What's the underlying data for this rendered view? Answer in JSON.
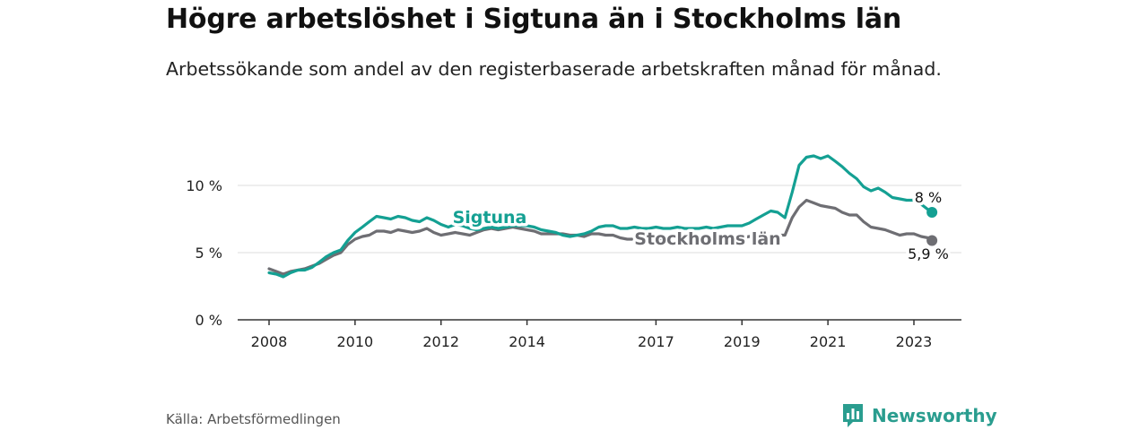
{
  "title": "Högre arbetslöshet i Sigtuna än i Stockholms län",
  "subtitle": "Arbetssökande som andel av den registerbaserade arbetskraften månad för månad.",
  "source": "Källa: Arbetsförmedlingen",
  "brand": "Newsworthy",
  "colors": {
    "sigtuna": "#14a093",
    "stockholm": "#6e6e73",
    "grid": "#dedede",
    "axis": "#333333"
  },
  "chart_data": {
    "type": "line",
    "title": "Högre arbetslöshet i Sigtuna än i Stockholms län",
    "xlabel": "",
    "ylabel": "",
    "xlim": [
      2008,
      2023.5
    ],
    "ylim": [
      0,
      13
    ],
    "x_ticks": [
      2008,
      2010,
      2012,
      2014,
      2017,
      2019,
      2021,
      2023
    ],
    "x_tick_labels": [
      "2008",
      "2010",
      "2012",
      "2014",
      "2017",
      "2019",
      "2021",
      "2023"
    ],
    "y_ticks": [
      0,
      5,
      10
    ],
    "y_tick_labels": [
      "0 %",
      "5 %",
      "10 %"
    ],
    "grid": true,
    "series": [
      {
        "name": "Sigtuna",
        "label": "Sigtuna",
        "end_label": "8 %",
        "points": [
          [
            2008,
            3.5
          ],
          [
            2008.17,
            3.4
          ],
          [
            2008.33,
            3.2
          ],
          [
            2008.5,
            3.5
          ],
          [
            2008.67,
            3.7
          ],
          [
            2008.83,
            3.7
          ],
          [
            2009,
            3.9
          ],
          [
            2009.17,
            4.3
          ],
          [
            2009.33,
            4.7
          ],
          [
            2009.5,
            5.0
          ],
          [
            2009.67,
            5.2
          ],
          [
            2009.83,
            5.9
          ],
          [
            2010,
            6.5
          ],
          [
            2010.17,
            6.9
          ],
          [
            2010.33,
            7.3
          ],
          [
            2010.5,
            7.7
          ],
          [
            2010.67,
            7.6
          ],
          [
            2010.83,
            7.5
          ],
          [
            2011,
            7.7
          ],
          [
            2011.17,
            7.6
          ],
          [
            2011.33,
            7.4
          ],
          [
            2011.5,
            7.3
          ],
          [
            2011.67,
            7.6
          ],
          [
            2011.83,
            7.4
          ],
          [
            2012,
            7.1
          ],
          [
            2012.17,
            6.9
          ],
          [
            2012.33,
            7.1
          ],
          [
            2012.5,
            7.0
          ],
          [
            2012.67,
            6.8
          ],
          [
            2012.83,
            6.7
          ],
          [
            2013,
            6.8
          ],
          [
            2013.17,
            6.9
          ],
          [
            2013.33,
            6.8
          ],
          [
            2013.5,
            6.9
          ],
          [
            2013.67,
            7.0
          ],
          [
            2013.83,
            7.0
          ],
          [
            2014,
            7.0
          ],
          [
            2014.17,
            6.9
          ],
          [
            2014.33,
            6.7
          ],
          [
            2014.5,
            6.6
          ],
          [
            2014.67,
            6.5
          ],
          [
            2014.83,
            6.3
          ],
          [
            2015,
            6.2
          ],
          [
            2015.17,
            6.3
          ],
          [
            2015.33,
            6.4
          ],
          [
            2015.5,
            6.6
          ],
          [
            2015.67,
            6.9
          ],
          [
            2015.83,
            7.0
          ],
          [
            2016,
            7.0
          ],
          [
            2016.17,
            6.8
          ],
          [
            2016.33,
            6.8
          ],
          [
            2016.5,
            6.9
          ],
          [
            2016.67,
            6.8
          ],
          [
            2016.83,
            6.8
          ],
          [
            2017,
            6.9
          ],
          [
            2017.17,
            6.8
          ],
          [
            2017.33,
            6.8
          ],
          [
            2017.5,
            6.9
          ],
          [
            2017.67,
            6.8
          ],
          [
            2017.83,
            6.8
          ],
          [
            2018,
            6.8
          ],
          [
            2018.17,
            6.9
          ],
          [
            2018.33,
            6.8
          ],
          [
            2018.5,
            6.9
          ],
          [
            2018.67,
            7.0
          ],
          [
            2018.83,
            7.0
          ],
          [
            2019,
            7.0
          ],
          [
            2019.17,
            7.2
          ],
          [
            2019.33,
            7.5
          ],
          [
            2019.5,
            7.8
          ],
          [
            2019.67,
            8.1
          ],
          [
            2019.83,
            8.0
          ],
          [
            2020,
            7.6
          ],
          [
            2020.17,
            9.5
          ],
          [
            2020.33,
            11.5
          ],
          [
            2020.5,
            12.1
          ],
          [
            2020.67,
            12.2
          ],
          [
            2020.83,
            12.0
          ],
          [
            2021,
            12.2
          ],
          [
            2021.17,
            11.8
          ],
          [
            2021.33,
            11.4
          ],
          [
            2021.5,
            10.9
          ],
          [
            2021.67,
            10.5
          ],
          [
            2021.83,
            9.9
          ],
          [
            2022,
            9.6
          ],
          [
            2022.17,
            9.8
          ],
          [
            2022.33,
            9.5
          ],
          [
            2022.5,
            9.1
          ],
          [
            2022.67,
            9.0
          ],
          [
            2022.83,
            8.9
          ],
          [
            2023,
            8.9
          ],
          [
            2023.17,
            8.6
          ],
          [
            2023.33,
            8.2
          ],
          [
            2023.42,
            8.0
          ]
        ]
      },
      {
        "name": "Stockholms län",
        "label": "Stockholms län",
        "end_label": "5,9 %",
        "points": [
          [
            2008,
            3.8
          ],
          [
            2008.17,
            3.6
          ],
          [
            2008.33,
            3.4
          ],
          [
            2008.5,
            3.6
          ],
          [
            2008.67,
            3.7
          ],
          [
            2008.83,
            3.8
          ],
          [
            2009,
            4.0
          ],
          [
            2009.17,
            4.2
          ],
          [
            2009.33,
            4.5
          ],
          [
            2009.5,
            4.8
          ],
          [
            2009.67,
            5.0
          ],
          [
            2009.83,
            5.6
          ],
          [
            2010,
            6.0
          ],
          [
            2010.17,
            6.2
          ],
          [
            2010.33,
            6.3
          ],
          [
            2010.5,
            6.6
          ],
          [
            2010.67,
            6.6
          ],
          [
            2010.83,
            6.5
          ],
          [
            2011,
            6.7
          ],
          [
            2011.17,
            6.6
          ],
          [
            2011.33,
            6.5
          ],
          [
            2011.5,
            6.6
          ],
          [
            2011.67,
            6.8
          ],
          [
            2011.83,
            6.5
          ],
          [
            2012,
            6.3
          ],
          [
            2012.17,
            6.4
          ],
          [
            2012.33,
            6.5
          ],
          [
            2012.5,
            6.4
          ],
          [
            2012.67,
            6.3
          ],
          [
            2012.83,
            6.5
          ],
          [
            2013,
            6.7
          ],
          [
            2013.17,
            6.8
          ],
          [
            2013.33,
            6.7
          ],
          [
            2013.5,
            6.8
          ],
          [
            2013.67,
            6.9
          ],
          [
            2013.83,
            6.8
          ],
          [
            2014,
            6.7
          ],
          [
            2014.17,
            6.6
          ],
          [
            2014.33,
            6.4
          ],
          [
            2014.5,
            6.4
          ],
          [
            2014.67,
            6.4
          ],
          [
            2014.83,
            6.4
          ],
          [
            2015,
            6.3
          ],
          [
            2015.17,
            6.3
          ],
          [
            2015.33,
            6.2
          ],
          [
            2015.5,
            6.4
          ],
          [
            2015.67,
            6.4
          ],
          [
            2015.83,
            6.3
          ],
          [
            2016,
            6.3
          ],
          [
            2016.17,
            6.1
          ],
          [
            2016.33,
            6.0
          ],
          [
            2016.5,
            6.0
          ],
          [
            2016.67,
            6.0
          ],
          [
            2016.83,
            6.0
          ],
          [
            2017,
            6.0
          ],
          [
            2017.17,
            6.0
          ],
          [
            2017.33,
            6.0
          ],
          [
            2017.5,
            6.1
          ],
          [
            2017.67,
            6.0
          ],
          [
            2017.83,
            6.0
          ],
          [
            2018,
            6.0
          ],
          [
            2018.17,
            6.1
          ],
          [
            2018.33,
            6.0
          ],
          [
            2018.5,
            6.0
          ],
          [
            2018.67,
            6.1
          ],
          [
            2018.83,
            6.1
          ],
          [
            2019,
            6.1
          ],
          [
            2019.17,
            6.2
          ],
          [
            2019.33,
            6.3
          ],
          [
            2019.5,
            6.4
          ],
          [
            2019.67,
            6.4
          ],
          [
            2019.83,
            6.3
          ],
          [
            2020,
            6.3
          ],
          [
            2020.17,
            7.6
          ],
          [
            2020.33,
            8.4
          ],
          [
            2020.5,
            8.9
          ],
          [
            2020.67,
            8.7
          ],
          [
            2020.83,
            8.5
          ],
          [
            2021,
            8.4
          ],
          [
            2021.17,
            8.3
          ],
          [
            2021.33,
            8.0
          ],
          [
            2021.5,
            7.8
          ],
          [
            2021.67,
            7.8
          ],
          [
            2021.83,
            7.3
          ],
          [
            2022,
            6.9
          ],
          [
            2022.17,
            6.8
          ],
          [
            2022.33,
            6.7
          ],
          [
            2022.5,
            6.5
          ],
          [
            2022.67,
            6.3
          ],
          [
            2022.83,
            6.4
          ],
          [
            2023,
            6.4
          ],
          [
            2023.17,
            6.2
          ],
          [
            2023.33,
            6.1
          ],
          [
            2023.42,
            5.9
          ]
        ]
      }
    ]
  }
}
